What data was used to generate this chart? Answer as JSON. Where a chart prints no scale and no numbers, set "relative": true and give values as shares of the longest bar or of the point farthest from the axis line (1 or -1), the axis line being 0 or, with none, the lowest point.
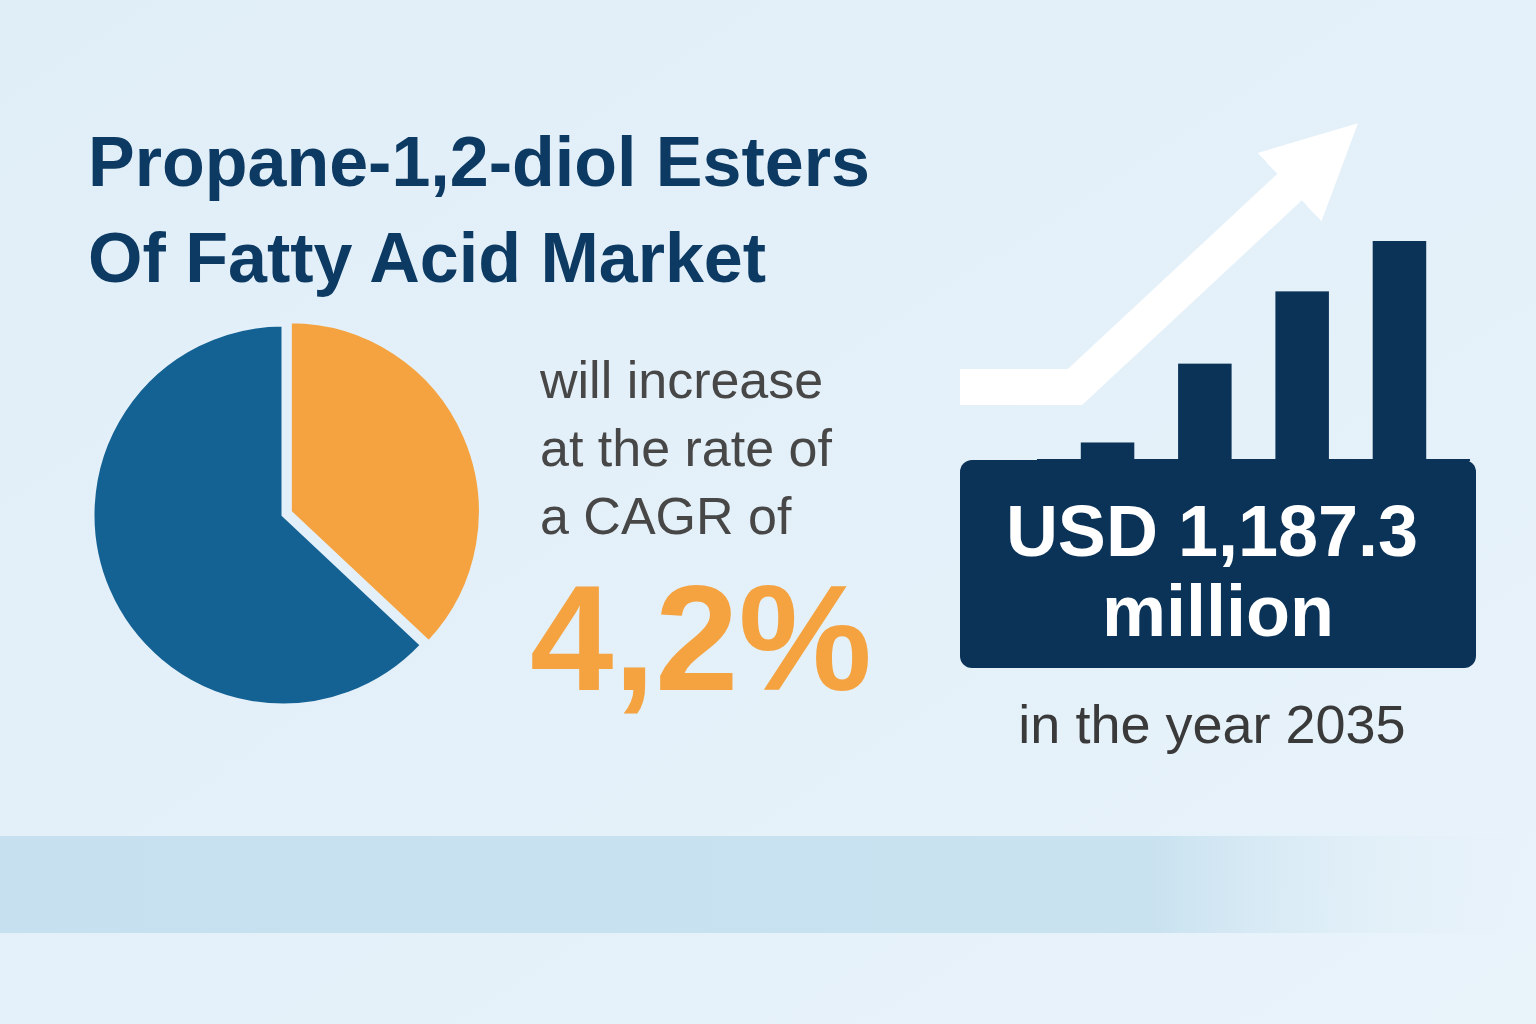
{
  "chart_data": [
    {
      "type": "other",
      "title": "Propane-1,2-diol Esters Of Fatty Acid Market",
      "annotations": [
        "will increase",
        "at the rate of",
        "a CAGR of",
        "4,2%",
        "USD 1,187.3",
        "million",
        "in the year 2035"
      ]
    },
    {
      "type": "pie",
      "categories": [
        null,
        null
      ],
      "values": [
        37,
        63
      ],
      "colors": [
        "#f4a340",
        "#146293"
      ]
    },
    {
      "type": "bar",
      "categories": [
        null,
        null,
        null,
        null
      ],
      "values": [
        0.08,
        0.44,
        0.77,
        1
      ],
      "relative": true,
      "color": "#0b3358"
    }
  ]
}
